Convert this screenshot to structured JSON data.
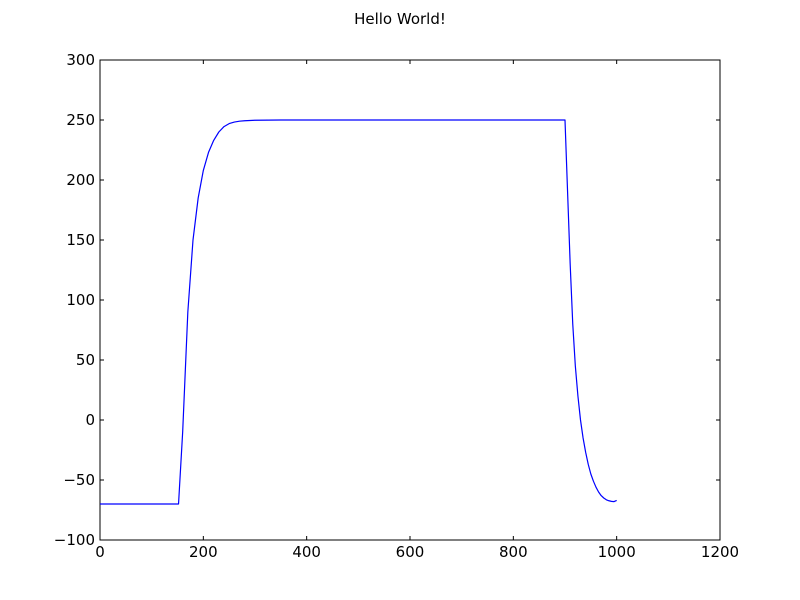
{
  "chart_data": {
    "type": "line",
    "title": "Hello World!",
    "xlabel": "",
    "ylabel": "",
    "xlim": [
      0,
      1200
    ],
    "ylim": [
      -100,
      300
    ],
    "xticks": [
      0,
      200,
      400,
      600,
      800,
      1000,
      1200
    ],
    "yticks": [
      -100,
      -50,
      0,
      50,
      100,
      150,
      200,
      250,
      300
    ],
    "xtick_labels": [
      "0",
      "200",
      "400",
      "600",
      "800",
      "1000",
      "1200"
    ],
    "ytick_labels": [
      "−100",
      "−50",
      "0",
      "50",
      "100",
      "150",
      "200",
      "250",
      "300"
    ],
    "grid": false,
    "legend": "none",
    "series": [
      {
        "color": "#0000ff",
        "x": [
          0,
          100,
          150,
          152,
          160,
          170,
          180,
          190,
          200,
          210,
          220,
          230,
          240,
          250,
          260,
          270,
          280,
          300,
          350,
          400,
          500,
          600,
          700,
          800,
          898,
          900,
          905,
          910,
          915,
          920,
          925,
          930,
          935,
          940,
          945,
          950,
          955,
          960,
          965,
          970,
          975,
          980,
          985,
          990,
          995,
          1000
        ],
        "y": [
          -70,
          -70,
          -70,
          -70,
          -10,
          90,
          150,
          185,
          208,
          223,
          233,
          240,
          244.5,
          247,
          248.3,
          249,
          249.4,
          249.8,
          250,
          250,
          250,
          250,
          250,
          250,
          250,
          250,
          190,
          130,
          80,
          45,
          20,
          0,
          -15,
          -27,
          -37,
          -45,
          -51,
          -56,
          -60,
          -63,
          -65,
          -66.5,
          -67.3,
          -67.8,
          -68,
          -67
        ]
      }
    ]
  }
}
